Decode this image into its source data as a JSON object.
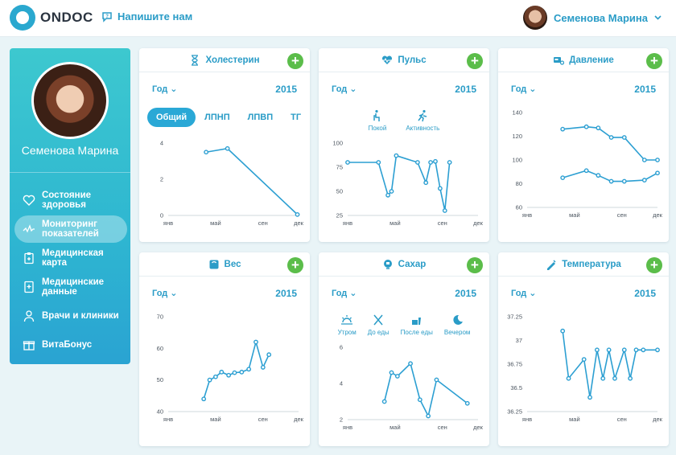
{
  "brand": {
    "name": "ONDOC"
  },
  "header": {
    "contact_label": "Напишите нам",
    "user_name": "Семенова Марина"
  },
  "sidebar": {
    "user_name": "Семенова Марина",
    "items": [
      {
        "label": "Состояние здоровья",
        "icon": "heart-icon",
        "active": false
      },
      {
        "label": "Мониторинг показателей",
        "icon": "pulse-line-icon",
        "active": true
      },
      {
        "label": "Медицинская карта",
        "icon": "clipboard-icon",
        "active": false
      },
      {
        "label": "Медицинские данные",
        "icon": "medical-doc-icon",
        "active": false
      },
      {
        "label": "Врачи и клиники",
        "icon": "doctor-icon",
        "active": false
      },
      {
        "label": "ВитаБонус",
        "icon": "gift-icon",
        "active": false
      }
    ]
  },
  "cards": {
    "cholesterol": {
      "title": "Холестерин",
      "period": "Год",
      "year": "2015",
      "tabs": [
        "Общий",
        "ЛПНП",
        "ЛПВП",
        "ТГ"
      ],
      "active_tab": "Общий"
    },
    "pulse": {
      "title": "Пульс",
      "period": "Год",
      "year": "2015",
      "modes": [
        "Покой",
        "Активность"
      ]
    },
    "pressure": {
      "title": "Давление",
      "period": "Год",
      "year": "2015"
    },
    "weight": {
      "title": "Вес",
      "period": "Год",
      "year": "2015"
    },
    "sugar": {
      "title": "Сахар",
      "period": "Год",
      "year": "2015",
      "modes": [
        "Утром",
        "До еды",
        "После еды",
        "Вечером"
      ]
    },
    "temperature": {
      "title": "Температура",
      "period": "Год",
      "year": "2015"
    }
  },
  "chart_data": [
    {
      "id": "cholesterol",
      "type": "line",
      "x_ticks": [
        "янв",
        "май",
        "сен",
        "дек"
      ],
      "y_ticks": [
        0,
        2,
        4
      ],
      "ylim": [
        0,
        4
      ],
      "series": [
        {
          "points": [
            [
              4.2,
              3.5
            ],
            [
              6.0,
              3.7
            ],
            [
              11.9,
              0.05
            ]
          ]
        }
      ]
    },
    {
      "id": "pulse",
      "type": "line",
      "x_ticks": [
        "янв",
        "май",
        "сен",
        "дек"
      ],
      "y_ticks": [
        25,
        50,
        75,
        100
      ],
      "ylim": [
        25,
        100
      ],
      "series": [
        {
          "points": [
            [
              1,
              80
            ],
            [
              3.6,
              80
            ],
            [
              4.4,
              46
            ],
            [
              4.7,
              50
            ],
            [
              5.1,
              87
            ],
            [
              6.9,
              80
            ],
            [
              7.6,
              59
            ],
            [
              8.0,
              80
            ],
            [
              8.4,
              81
            ],
            [
              8.8,
              53
            ],
            [
              9.2,
              30
            ],
            [
              9.6,
              80
            ]
          ]
        }
      ]
    },
    {
      "id": "pressure",
      "type": "line",
      "x_ticks": [
        "янв",
        "май",
        "сен",
        "дек"
      ],
      "y_ticks": [
        60,
        80,
        100,
        120,
        140
      ],
      "ylim": [
        60,
        140
      ],
      "series": [
        {
          "points": [
            [
              4.0,
              126
            ],
            [
              6.0,
              128
            ],
            [
              7.0,
              127
            ],
            [
              8.1,
              119
            ],
            [
              9.2,
              119
            ],
            [
              10.9,
              100
            ],
            [
              12.0,
              100
            ]
          ]
        },
        {
          "points": [
            [
              4.0,
              85
            ],
            [
              6.0,
              91
            ],
            [
              7.0,
              87
            ],
            [
              8.1,
              82
            ],
            [
              9.2,
              82
            ],
            [
              10.9,
              83
            ],
            [
              12.0,
              89
            ]
          ]
        }
      ]
    },
    {
      "id": "weight",
      "type": "line",
      "x_ticks": [
        "янв",
        "май",
        "сен",
        "дек"
      ],
      "y_ticks": [
        40,
        50,
        60,
        70
      ],
      "ylim": [
        40,
        70
      ],
      "series": [
        {
          "points": [
            [
              4.0,
              44
            ],
            [
              4.5,
              50
            ],
            [
              5.0,
              51
            ],
            [
              5.5,
              52.5
            ],
            [
              6.1,
              51.5
            ],
            [
              6.6,
              52.3
            ],
            [
              7.2,
              52.5
            ],
            [
              7.8,
              53.4
            ],
            [
              8.4,
              62
            ],
            [
              9.0,
              54
            ],
            [
              9.5,
              58
            ]
          ]
        }
      ]
    },
    {
      "id": "sugar",
      "type": "line",
      "x_ticks": [
        "янв",
        "май",
        "сен",
        "дек"
      ],
      "y_ticks": [
        2,
        4,
        6
      ],
      "ylim": [
        2,
        6
      ],
      "series": [
        {
          "points": [
            [
              4.1,
              3.0
            ],
            [
              4.7,
              4.6
            ],
            [
              5.2,
              4.4
            ],
            [
              6.3,
              5.1
            ],
            [
              7.1,
              3.1
            ],
            [
              7.8,
              2.2
            ],
            [
              8.5,
              4.2
            ],
            [
              11.1,
              2.9
            ]
          ]
        }
      ]
    },
    {
      "id": "temperature",
      "type": "line",
      "x_ticks": [
        "янв",
        "май",
        "сен",
        "дек"
      ],
      "y_ticks": [
        36.25,
        36.5,
        36.75,
        37,
        37.25
      ],
      "ylim": [
        36.25,
        37.25
      ],
      "series": [
        {
          "points": [
            [
              4.0,
              37.1
            ],
            [
              4.5,
              36.6
            ],
            [
              5.8,
              36.8
            ],
            [
              6.3,
              36.4
            ],
            [
              6.9,
              36.9
            ],
            [
              7.4,
              36.6
            ],
            [
              7.9,
              36.9
            ],
            [
              8.4,
              36.6
            ],
            [
              9.2,
              36.9
            ],
            [
              9.7,
              36.6
            ],
            [
              10.2,
              36.9
            ],
            [
              10.8,
              36.9
            ],
            [
              12.0,
              36.9
            ]
          ]
        }
      ]
    }
  ],
  "colors": {
    "accent": "#2aa8d6",
    "line": "#2c9fd2",
    "add": "#5bbd4a"
  }
}
